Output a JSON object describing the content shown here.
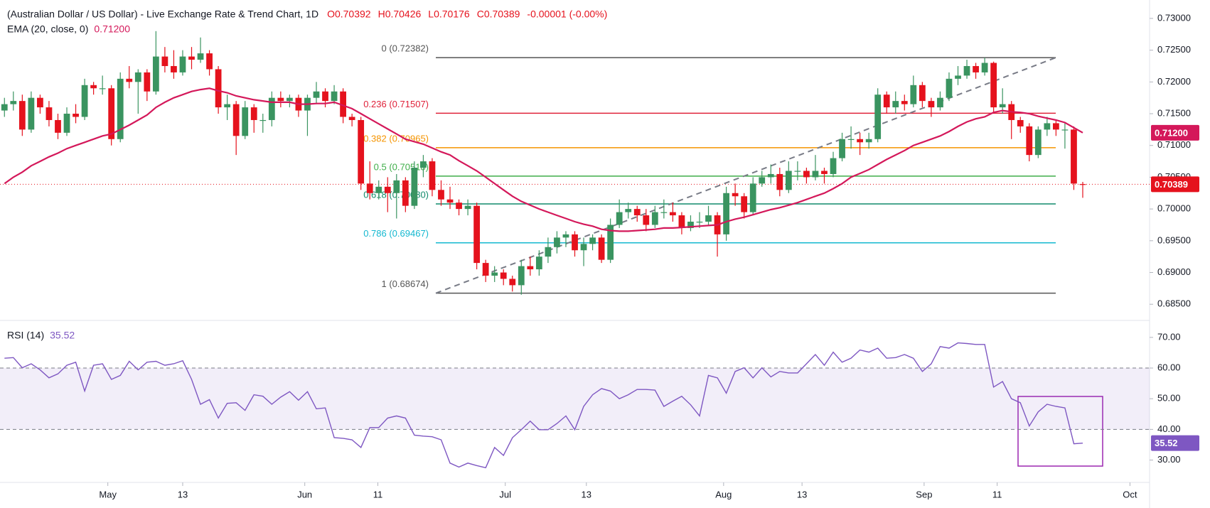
{
  "chart_data": [
    {
      "type": "candlestick",
      "title": "(Australian Dollar / US Dollar) - Live Exchange Rate & Trend Chart, 1D",
      "legend_values": [
        "O0.70392",
        "H0.70426",
        "L0.70176",
        "C0.70389",
        "-0.00001 (-0.00%)"
      ],
      "up_color": "#3a9460",
      "down_color": "#e5121d",
      "candles": [
        [
          0.7155,
          0.7175,
          0.7145,
          0.7165
        ],
        [
          0.7165,
          0.7185,
          0.7155,
          0.717
        ],
        [
          0.717,
          0.718,
          0.7115,
          0.7125
        ],
        [
          0.7125,
          0.7185,
          0.712,
          0.7175
        ],
        [
          0.7175,
          0.718,
          0.715,
          0.716
        ],
        [
          0.716,
          0.717,
          0.713,
          0.714
        ],
        [
          0.714,
          0.715,
          0.711,
          0.712
        ],
        [
          0.712,
          0.716,
          0.7115,
          0.715
        ],
        [
          0.715,
          0.7165,
          0.7135,
          0.7145
        ],
        [
          0.7145,
          0.7205,
          0.714,
          0.7195
        ],
        [
          0.7195,
          0.72,
          0.718,
          0.719
        ],
        [
          0.719,
          0.721,
          0.718,
          0.719
        ],
        [
          0.719,
          0.7195,
          0.71,
          0.711
        ],
        [
          0.711,
          0.7215,
          0.7105,
          0.7205
        ],
        [
          0.7205,
          0.7225,
          0.719,
          0.72
        ],
        [
          0.72,
          0.722,
          0.715,
          0.7215
        ],
        [
          0.7215,
          0.722,
          0.717,
          0.7185
        ],
        [
          0.7185,
          0.728,
          0.718,
          0.724
        ],
        [
          0.724,
          0.7255,
          0.7215,
          0.7225
        ],
        [
          0.7225,
          0.725,
          0.7205,
          0.7215
        ],
        [
          0.7215,
          0.725,
          0.721,
          0.724
        ],
        [
          0.724,
          0.7255,
          0.722,
          0.7235
        ],
        [
          0.7235,
          0.727,
          0.723,
          0.7245
        ],
        [
          0.7245,
          0.725,
          0.721,
          0.722
        ],
        [
          0.722,
          0.7225,
          0.715,
          0.716
        ],
        [
          0.716,
          0.718,
          0.714,
          0.7165
        ],
        [
          0.7165,
          0.717,
          0.7085,
          0.7115
        ],
        [
          0.7115,
          0.717,
          0.711,
          0.716
        ],
        [
          0.716,
          0.7165,
          0.712,
          0.714
        ],
        [
          0.714,
          0.715,
          0.712,
          0.714
        ],
        [
          0.714,
          0.7185,
          0.713,
          0.7175
        ],
        [
          0.7175,
          0.7185,
          0.716,
          0.717
        ],
        [
          0.717,
          0.718,
          0.716,
          0.7175
        ],
        [
          0.7175,
          0.718,
          0.7145,
          0.7155
        ],
        [
          0.7155,
          0.718,
          0.7115,
          0.7175
        ],
        [
          0.7175,
          0.72,
          0.7165,
          0.7185
        ],
        [
          0.7185,
          0.719,
          0.716,
          0.717
        ],
        [
          0.717,
          0.7195,
          0.7165,
          0.7185
        ],
        [
          0.7185,
          0.719,
          0.7135,
          0.7145
        ],
        [
          0.7145,
          0.715,
          0.713,
          0.714
        ],
        [
          0.714,
          0.7145,
          0.703,
          0.704
        ],
        [
          0.704,
          0.7075,
          0.7015,
          0.7025
        ],
        [
          0.7025,
          0.7045,
          0.7015,
          0.7035
        ],
        [
          0.7035,
          0.705,
          0.6995,
          0.7025
        ],
        [
          0.7025,
          0.7055,
          0.6985,
          0.7045
        ],
        [
          0.7045,
          0.705,
          0.6995,
          0.7005
        ],
        [
          0.7005,
          0.7075,
          0.7,
          0.7065
        ],
        [
          0.7065,
          0.7085,
          0.705,
          0.7075
        ],
        [
          0.7075,
          0.708,
          0.702,
          0.703
        ],
        [
          0.703,
          0.7045,
          0.7005,
          0.7015
        ],
        [
          0.7015,
          0.7035,
          0.7,
          0.701
        ],
        [
          0.701,
          0.7015,
          0.699,
          0.7
        ],
        [
          0.7,
          0.7015,
          0.699,
          0.7005
        ],
        [
          0.7005,
          0.701,
          0.6905,
          0.6915
        ],
        [
          0.6915,
          0.692,
          0.6885,
          0.6895
        ],
        [
          0.6895,
          0.691,
          0.6885,
          0.69
        ],
        [
          0.69,
          0.6905,
          0.688,
          0.689
        ],
        [
          0.689,
          0.6895,
          0.687,
          0.688
        ],
        [
          0.688,
          0.692,
          0.6865,
          0.691
        ],
        [
          0.691,
          0.6925,
          0.6895,
          0.6905
        ],
        [
          0.6905,
          0.6935,
          0.6895,
          0.6925
        ],
        [
          0.6925,
          0.6955,
          0.6915,
          0.694
        ],
        [
          0.694,
          0.6965,
          0.693,
          0.6955
        ],
        [
          0.6955,
          0.6965,
          0.694,
          0.696
        ],
        [
          0.696,
          0.6965,
          0.6925,
          0.6935
        ],
        [
          0.6935,
          0.6955,
          0.691,
          0.6945
        ],
        [
          0.6945,
          0.696,
          0.6935,
          0.6955
        ],
        [
          0.6955,
          0.696,
          0.6915,
          0.692
        ],
        [
          0.692,
          0.6985,
          0.6915,
          0.6975
        ],
        [
          0.6975,
          0.7015,
          0.697,
          0.6995
        ],
        [
          0.6995,
          0.701,
          0.6985,
          0.7
        ],
        [
          0.7,
          0.7005,
          0.698,
          0.699
        ],
        [
          0.699,
          0.7,
          0.6965,
          0.6975
        ],
        [
          0.6975,
          0.7005,
          0.697,
          0.6995
        ],
        [
          0.6995,
          0.7015,
          0.6985,
          0.6995
        ],
        [
          0.6995,
          0.701,
          0.698,
          0.699
        ],
        [
          0.699,
          0.6995,
          0.696,
          0.697
        ],
        [
          0.697,
          0.699,
          0.6965,
          0.698
        ],
        [
          0.698,
          0.6995,
          0.697,
          0.698
        ],
        [
          0.698,
          0.7005,
          0.6975,
          0.699
        ],
        [
          0.699,
          0.6995,
          0.6925,
          0.696
        ],
        [
          0.696,
          0.7035,
          0.695,
          0.7025
        ],
        [
          0.7025,
          0.704,
          0.7005,
          0.702
        ],
        [
          0.702,
          0.7025,
          0.6985,
          0.6995
        ],
        [
          0.6995,
          0.705,
          0.699,
          0.704
        ],
        [
          0.704,
          0.706,
          0.7035,
          0.705
        ],
        [
          0.705,
          0.707,
          0.704,
          0.7055
        ],
        [
          0.7055,
          0.7065,
          0.702,
          0.703
        ],
        [
          0.703,
          0.7075,
          0.7025,
          0.706
        ],
        [
          0.706,
          0.7075,
          0.7045,
          0.706
        ],
        [
          0.706,
          0.7065,
          0.704,
          0.705
        ],
        [
          0.705,
          0.7085,
          0.7045,
          0.706
        ],
        [
          0.706,
          0.7065,
          0.704,
          0.7055
        ],
        [
          0.7055,
          0.709,
          0.705,
          0.708
        ],
        [
          0.708,
          0.712,
          0.7075,
          0.711
        ],
        [
          0.711,
          0.713,
          0.7095,
          0.711
        ],
        [
          0.711,
          0.712,
          0.7085,
          0.7105
        ],
        [
          0.7105,
          0.712,
          0.7095,
          0.711
        ],
        [
          0.711,
          0.719,
          0.7105,
          0.718
        ],
        [
          0.718,
          0.7185,
          0.715,
          0.716
        ],
        [
          0.716,
          0.7185,
          0.715,
          0.717
        ],
        [
          0.717,
          0.718,
          0.7155,
          0.7165
        ],
        [
          0.7165,
          0.721,
          0.716,
          0.7195
        ],
        [
          0.7195,
          0.72,
          0.716,
          0.717
        ],
        [
          0.717,
          0.7175,
          0.7145,
          0.716
        ],
        [
          0.716,
          0.7185,
          0.7155,
          0.7175
        ],
        [
          0.7175,
          0.7215,
          0.717,
          0.7205
        ],
        [
          0.7205,
          0.7225,
          0.7195,
          0.721
        ],
        [
          0.721,
          0.7235,
          0.7205,
          0.7225
        ],
        [
          0.7225,
          0.723,
          0.7205,
          0.7215
        ],
        [
          0.7215,
          0.7238,
          0.721,
          0.723
        ],
        [
          0.723,
          0.7232,
          0.715,
          0.716
        ],
        [
          0.716,
          0.719,
          0.715,
          0.7165
        ],
        [
          0.7165,
          0.717,
          0.711,
          0.714
        ],
        [
          0.714,
          0.7145,
          0.712,
          0.713
        ],
        [
          0.713,
          0.7135,
          0.7075,
          0.7085
        ],
        [
          0.7085,
          0.713,
          0.708,
          0.7125
        ],
        [
          0.7125,
          0.7145,
          0.7115,
          0.7135
        ],
        [
          0.7135,
          0.714,
          0.7115,
          0.7125
        ],
        [
          0.7125,
          0.7135,
          0.7095,
          0.7125
        ],
        [
          0.7125,
          0.713,
          0.703,
          0.704
        ],
        [
          0.70392,
          0.70426,
          0.70176,
          0.70389
        ]
      ],
      "last_price_label": "0.70389",
      "ema": {
        "name": "EMA (20, close, 0)",
        "value_label": "0.71200",
        "color": "#d4185a",
        "values": [
          0.704,
          0.705,
          0.7058,
          0.7068,
          0.7075,
          0.7082,
          0.7088,
          0.7095,
          0.71,
          0.7105,
          0.711,
          0.7115,
          0.7118,
          0.7125,
          0.7132,
          0.714,
          0.7148,
          0.716,
          0.7168,
          0.7175,
          0.718,
          0.7185,
          0.7188,
          0.719,
          0.7186,
          0.7183,
          0.7178,
          0.7175,
          0.7172,
          0.717,
          0.7168,
          0.7168,
          0.7168,
          0.7165,
          0.7165,
          0.7166,
          0.7166,
          0.7168,
          0.7163,
          0.7158,
          0.715,
          0.7142,
          0.7134,
          0.7126,
          0.7118,
          0.711,
          0.7106,
          0.7102,
          0.7096,
          0.709,
          0.7085,
          0.7076,
          0.7068,
          0.706,
          0.705,
          0.704,
          0.703,
          0.702,
          0.7012,
          0.7006,
          0.7,
          0.6995,
          0.699,
          0.6985,
          0.698,
          0.6976,
          0.6973,
          0.6968,
          0.6966,
          0.6965,
          0.6965,
          0.6966,
          0.6967,
          0.6968,
          0.697,
          0.697,
          0.6971,
          0.6972,
          0.6973,
          0.6974,
          0.6975,
          0.698,
          0.6984,
          0.6987,
          0.6991,
          0.6995,
          0.6999,
          0.7002,
          0.7006,
          0.701,
          0.7015,
          0.702,
          0.7025,
          0.7032,
          0.704,
          0.705,
          0.7056,
          0.7062,
          0.707,
          0.7078,
          0.7085,
          0.7092,
          0.71,
          0.7105,
          0.711,
          0.7115,
          0.7122,
          0.713,
          0.7137,
          0.7142,
          0.7145,
          0.7152,
          0.7155,
          0.7153,
          0.7152,
          0.715,
          0.7146,
          0.7143,
          0.714,
          0.7136,
          0.7128,
          0.712
        ]
      },
      "fib": [
        {
          "label": "0 (0.72382)",
          "value": 0.72382,
          "color": "#555555"
        },
        {
          "label": "0.236 (0.71507)",
          "value": 0.71507,
          "color": "#e0223a"
        },
        {
          "label": "0.382 (0.70965)",
          "value": 0.70965,
          "color": "#f59400"
        },
        {
          "label": "0.5 (0.70518)",
          "value": 0.70518,
          "color": "#3fae49"
        },
        {
          "label": "0.618 (0.70080)",
          "value": 0.7008,
          "color": "#118a6b"
        },
        {
          "label": "0.786 (0.69467)",
          "value": 0.69467,
          "color": "#14b8d0"
        },
        {
          "label": "1 (0.68674)",
          "value": 0.68674,
          "color": "#555555"
        }
      ],
      "xlim": [
        -0.5,
        128.5
      ],
      "ylim": [
        0.6829,
        0.7329
      ],
      "yticks": [
        {
          "value": 0.685,
          "label": "0.68500"
        },
        {
          "value": 0.69,
          "label": "0.69000"
        },
        {
          "value": 0.695,
          "label": "0.69500"
        },
        {
          "value": 0.7,
          "label": "0.70000"
        },
        {
          "value": 0.705,
          "label": "0.70500"
        },
        {
          "value": 0.71,
          "label": "0.71000"
        },
        {
          "value": 0.715,
          "label": "0.71500"
        },
        {
          "value": 0.72,
          "label": "0.72000"
        },
        {
          "value": 0.725,
          "label": "0.72500"
        },
        {
          "value": 0.73,
          "label": "0.73000"
        }
      ]
    },
    {
      "type": "line",
      "series": [
        {
          "name": "RSI (14)",
          "value_label": "35.52",
          "color": "#7e57c2",
          "values": [
            63.2,
            63.4,
            60.1,
            61.4,
            59.4,
            56.8,
            58.1,
            60.9,
            61.9,
            52.5,
            60.9,
            61.4,
            56.3,
            57.6,
            62.2,
            59.4,
            61.9,
            62.2,
            60.9,
            61.4,
            62.4,
            56.3,
            48.2,
            49.7,
            43.7,
            48.5,
            48.7,
            46.2,
            51.3,
            50.8,
            48.2,
            50.5,
            52.3,
            49.5,
            52.3,
            46.7,
            47.0,
            37.3,
            37.1,
            36.6,
            34.1,
            40.6,
            40.6,
            43.7,
            44.4,
            43.7,
            38.1,
            37.8,
            37.6,
            36.6,
            29.0,
            27.7,
            29.0,
            28.2,
            27.5,
            34.1,
            31.5,
            37.3,
            39.9,
            42.7,
            39.9,
            39.9,
            41.9,
            44.4,
            39.9,
            47.5,
            51.3,
            53.3,
            52.5,
            50.0,
            51.3,
            53.0,
            53.0,
            52.8,
            47.5,
            49.2,
            50.8,
            48.0,
            44.4,
            57.6,
            56.8,
            51.8,
            58.9,
            60.1,
            56.8,
            60.1,
            57.1,
            58.9,
            58.4,
            58.4,
            61.4,
            64.4,
            60.9,
            65.2,
            61.9,
            63.2,
            65.9,
            65.2,
            66.5,
            63.2,
            63.4,
            64.4,
            63.2,
            58.9,
            61.4,
            67.0,
            66.5,
            68.2,
            68.0,
            67.7,
            67.7,
            53.8,
            55.6,
            50.0,
            48.7,
            41.1,
            45.7,
            48.2,
            47.5,
            47.0,
            35.3,
            35.52
          ]
        }
      ],
      "bands": [
        40,
        60
      ],
      "xlim": [
        -0.5,
        128.5
      ],
      "ylim": [
        23.4,
        74.6
      ],
      "yticks": [
        {
          "value": 30,
          "label": "30.00"
        },
        {
          "value": 40,
          "label": "40.00"
        },
        {
          "value": 50,
          "label": "50.00"
        },
        {
          "value": 60,
          "label": "60.00"
        },
        {
          "value": 70,
          "label": "70.00"
        }
      ],
      "xticks": [
        {
          "value": 11.6,
          "label": "May"
        },
        {
          "value": 20.0,
          "label": "13"
        },
        {
          "value": 33.7,
          "label": "Jun"
        },
        {
          "value": 41.9,
          "label": "11"
        },
        {
          "value": 56.2,
          "label": "Jul"
        },
        {
          "value": 65.3,
          "label": "13"
        },
        {
          "value": 80.7,
          "label": "Aug"
        },
        {
          "value": 89.5,
          "label": "13"
        },
        {
          "value": 103.2,
          "label": "Sep"
        },
        {
          "value": 111.4,
          "label": "11"
        },
        {
          "value": 126.3,
          "label": "Oct"
        }
      ]
    }
  ]
}
